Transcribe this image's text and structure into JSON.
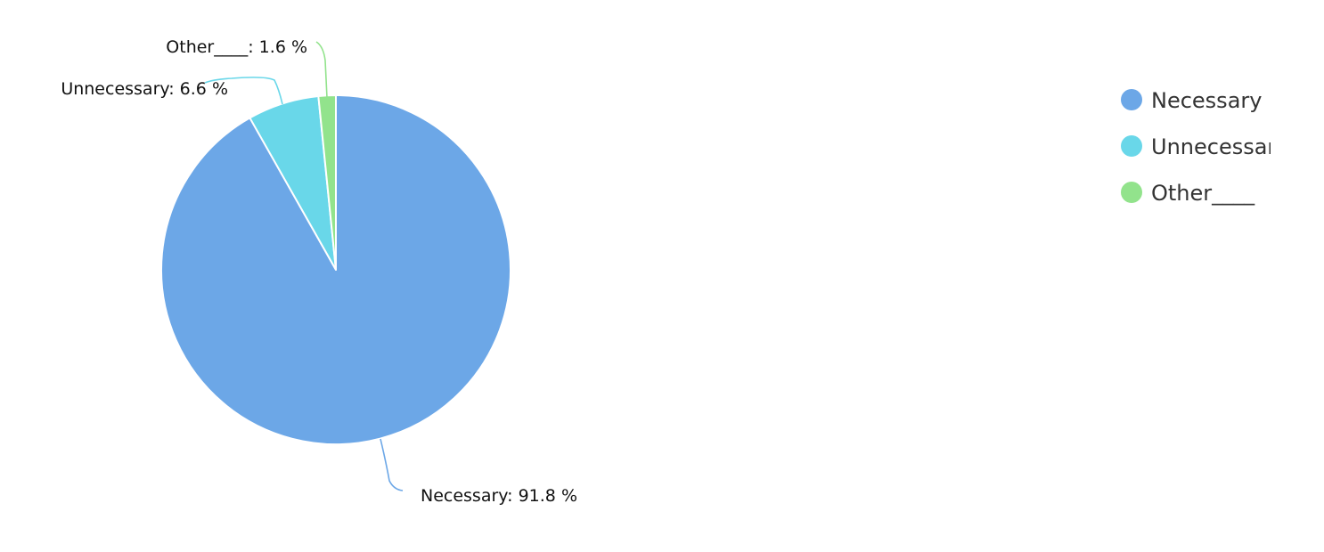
{
  "chart_data": {
    "type": "pie",
    "title": "",
    "categories": [
      "Necessary",
      "Unnecessary",
      "Other____"
    ],
    "values": [
      91.8,
      6.6,
      1.6
    ],
    "unit": "%",
    "labels": [
      "Necessary: 91.8 %",
      "Unnecessary: 6.6 %",
      "Other____: 1.6 %"
    ],
    "legend": {
      "position": "right",
      "entries": [
        "Necessary",
        "Unnecessary",
        "Other____"
      ]
    },
    "colors": [
      "#6ca7e7",
      "#69d7e9",
      "#92e38c"
    ]
  }
}
